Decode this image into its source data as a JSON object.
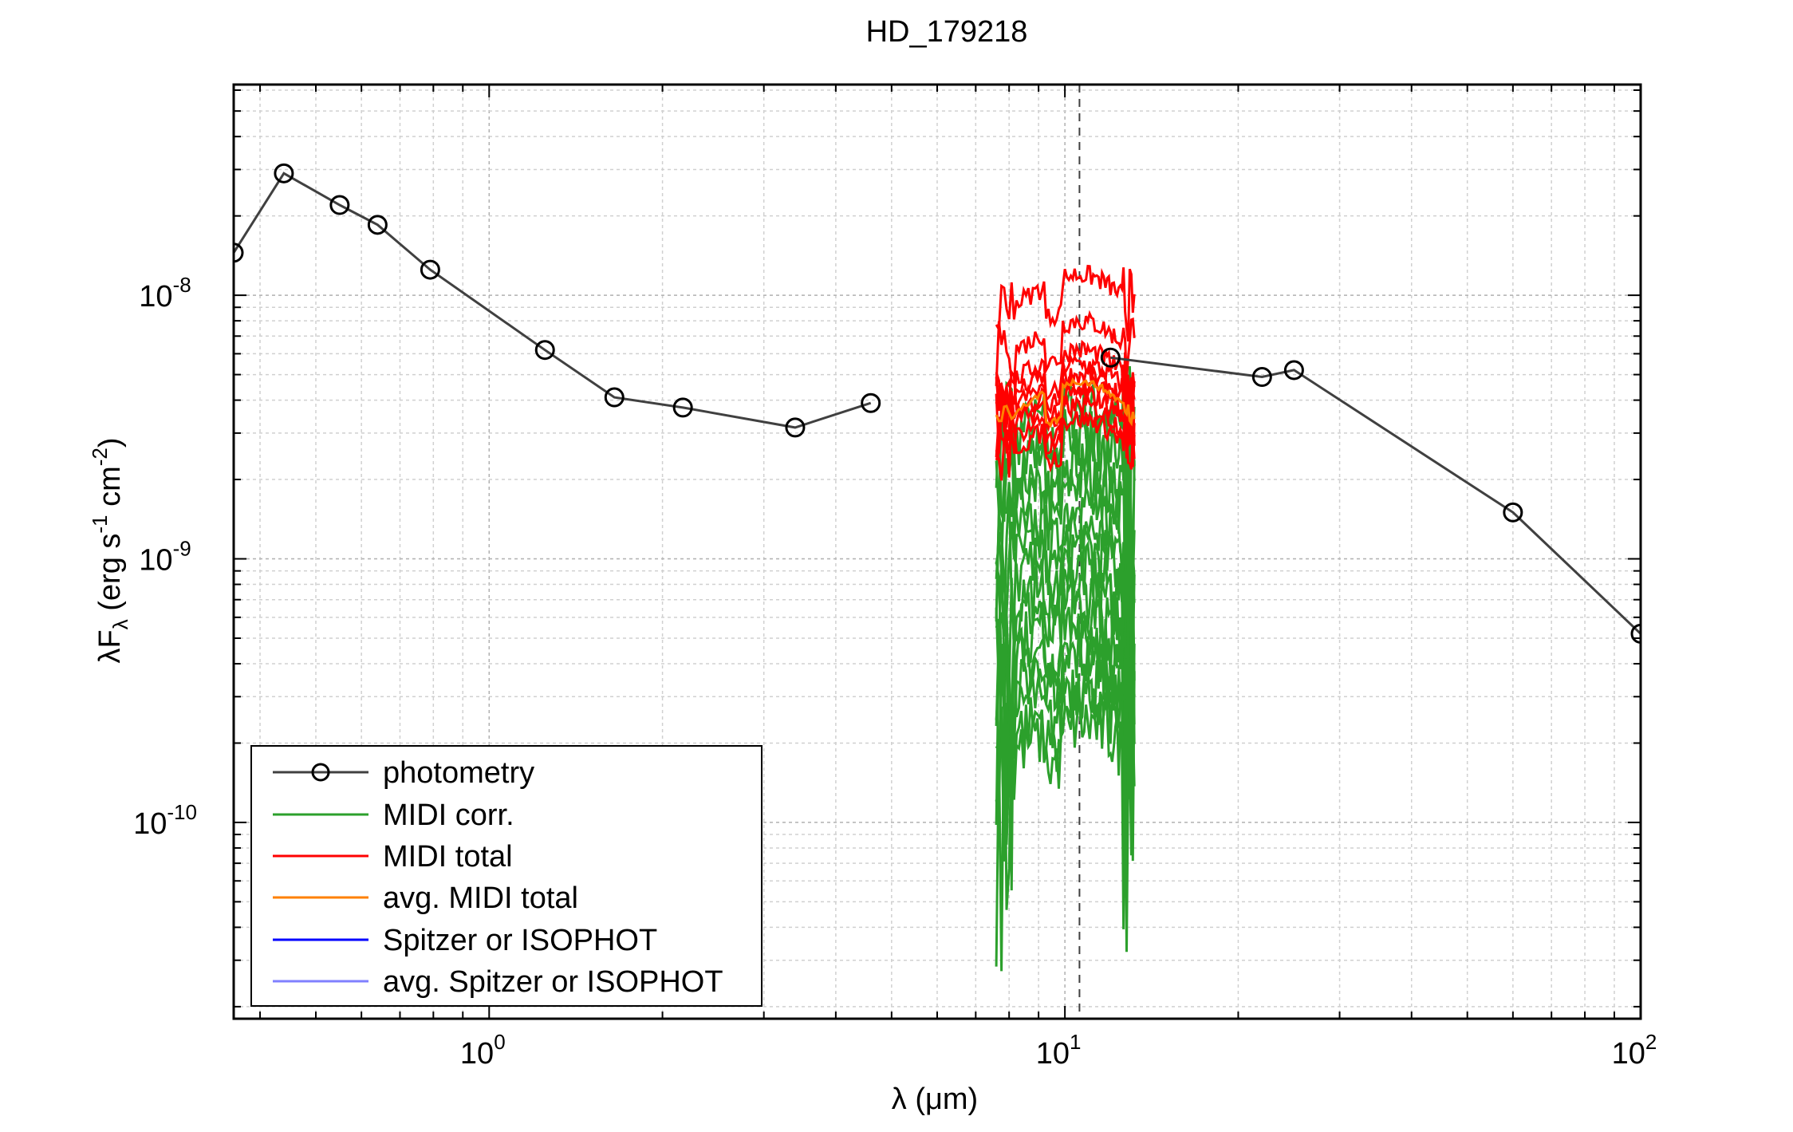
{
  "title": "HD_179218",
  "chart_data": {
    "type": "line",
    "title": "HD_179218",
    "xlabel": {
      "base": "λ (",
      "mu": "μ",
      "rest": "m)"
    },
    "ylabel": {
      "lambda_f": "λF",
      "sub": "λ",
      "units_a": " (erg s",
      "exp1": "-1",
      "units_b": " cm",
      "exp2": "-2",
      "units_c": ")"
    },
    "x_scale": "log",
    "y_scale": "log",
    "xlim": [
      0.36,
      100
    ],
    "ylim": [
      1.8e-11,
      6.3e-08
    ],
    "grid": true,
    "legend_position": "bottom-left",
    "x_ticks": [
      {
        "value": 1,
        "base": "10",
        "exp": "0"
      },
      {
        "value": 10,
        "base": "10",
        "exp": "1"
      },
      {
        "value": 100,
        "base": "10",
        "exp": "2"
      }
    ],
    "y_ticks": [
      {
        "value": 1e-10,
        "base": "10",
        "exp": "-10"
      },
      {
        "value": 1e-09,
        "base": "10",
        "exp": "-9"
      },
      {
        "value": 1e-08,
        "base": "10",
        "exp": "-8"
      }
    ],
    "vertical_line": {
      "x": 10.6,
      "style": "dashed"
    },
    "legend": [
      {
        "label": "photometry",
        "color": "#404040",
        "marker": "circle"
      },
      {
        "label": "MIDI corr.",
        "color": "#2ca02c"
      },
      {
        "label": "MIDI total",
        "color": "#ff0000"
      },
      {
        "label": "avg. MIDI total",
        "color": "#ff8000"
      },
      {
        "label": "Spitzer or ISOPHOT",
        "color": "#0000ff"
      },
      {
        "label": "avg. Spitzer or ISOPHOT",
        "color": "#8080ff"
      }
    ],
    "photometry": {
      "color": "#404040",
      "x": [
        0.36,
        0.44,
        0.55,
        0.64,
        0.79,
        1.25,
        1.65,
        2.17,
        3.4,
        4.6,
        12,
        22,
        25,
        60,
        100
      ],
      "y": [
        1.45e-08,
        2.9e-08,
        2.2e-08,
        1.85e-08,
        1.25e-08,
        6.2e-09,
        4.1e-09,
        3.75e-09,
        3.15e-09,
        3.9e-09,
        5.8e-09,
        4.9e-09,
        5.2e-09,
        1.5e-09,
        5.2e-10
      ]
    },
    "midi_wavelength_range": [
      7.6,
      13.2
    ],
    "midi_corr_color": "#2ca02c",
    "midi_total_color": "#ff0000",
    "avg_midi_total_color": "#ff8000",
    "midi_corr_levels": [
      3.8e-09,
      3e-09,
      2.5e-09,
      2e-09,
      1.6e-09,
      1.3e-09,
      1.1e-09,
      9e-10,
      7.5e-10,
      6.2e-10,
      5.2e-10,
      4.3e-10,
      3.5e-10,
      2.9e-10,
      2.4e-10
    ],
    "midi_total_levels": [
      1.2e-08,
      8e-09,
      6.2e-09,
      5.5e-09,
      5e-09,
      4.6e-09,
      4.2e-09,
      3.8e-09,
      3.4e-09
    ],
    "avg_midi_total_level": 4.7e-09
  }
}
